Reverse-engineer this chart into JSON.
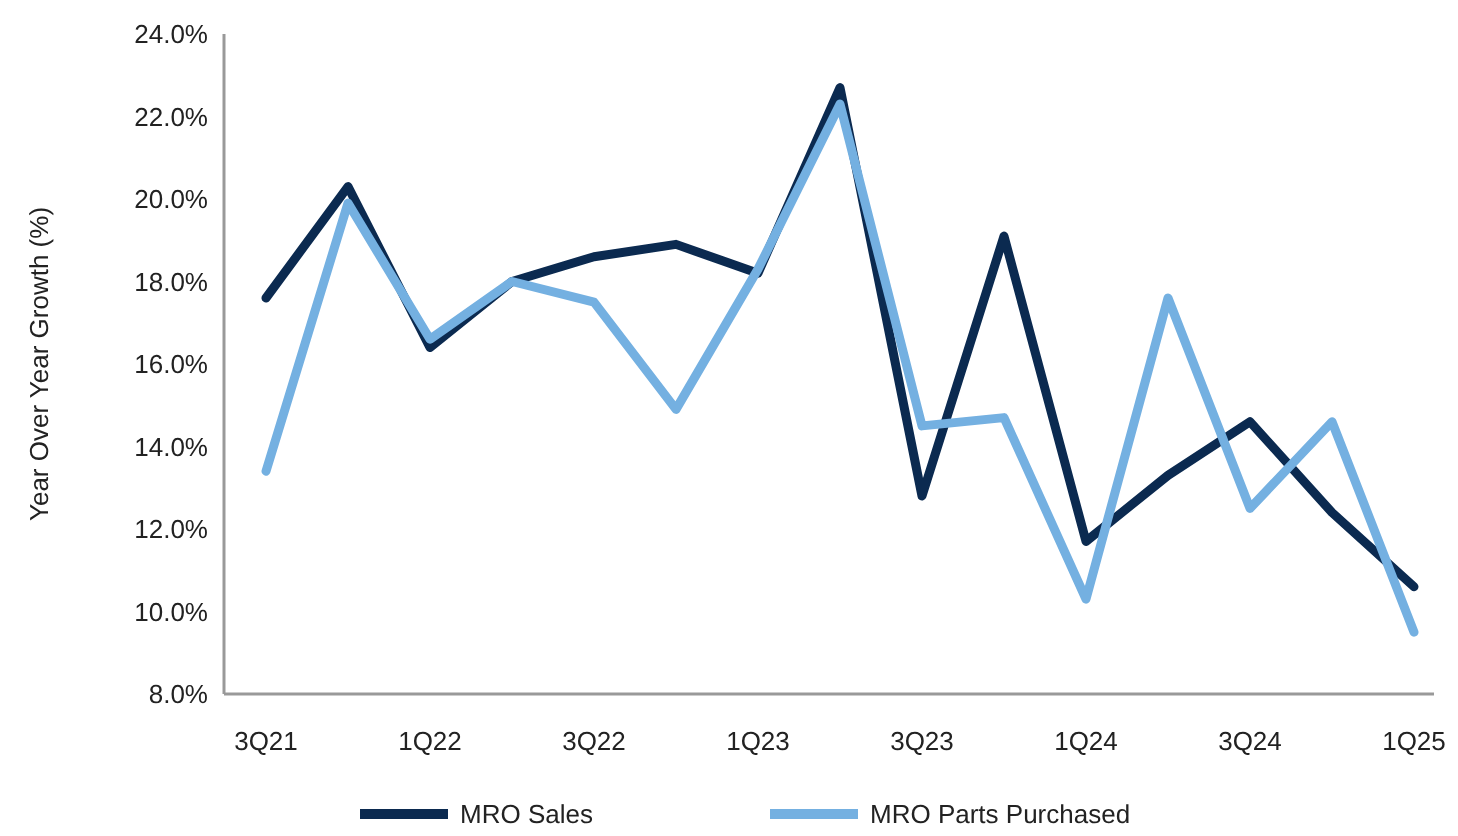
{
  "chart_data": {
    "type": "line",
    "ylabel": "Year Over Year Growth (%)",
    "categories": [
      "3Q21",
      null,
      "1Q22",
      null,
      "3Q22",
      null,
      "1Q23",
      null,
      "3Q23",
      null,
      "1Q24",
      null,
      "3Q24",
      null,
      "1Q25"
    ],
    "series": [
      {
        "name": "MRO Sales",
        "color": "#0b2a50",
        "values": [
          17.6,
          20.3,
          16.4,
          18.0,
          18.6,
          18.9,
          18.2,
          22.7,
          12.8,
          19.1,
          11.7,
          13.3,
          14.6,
          12.4,
          10.6
        ]
      },
      {
        "name": "MRO Parts Purchased",
        "color": "#74b0e1",
        "values": [
          13.4,
          19.9,
          16.6,
          18.0,
          17.5,
          14.9,
          18.3,
          22.3,
          14.5,
          14.7,
          10.3,
          17.6,
          12.5,
          14.6,
          9.5
        ]
      }
    ],
    "ylim": [
      8,
      24
    ],
    "yticks": [
      {
        "value": 8,
        "label": "8.0%"
      },
      {
        "value": 10,
        "label": "10.0%"
      },
      {
        "value": 12,
        "label": "12.0%"
      },
      {
        "value": 14,
        "label": "14.0%"
      },
      {
        "value": 16,
        "label": "16.0%"
      },
      {
        "value": 18,
        "label": "18.0%"
      },
      {
        "value": 20,
        "label": "20.0%"
      },
      {
        "value": 22,
        "label": "22.0%"
      },
      {
        "value": 24,
        "label": "24.0%"
      }
    ],
    "grid": false,
    "legend": "bottom",
    "marker": "none",
    "line_style": "solid"
  }
}
